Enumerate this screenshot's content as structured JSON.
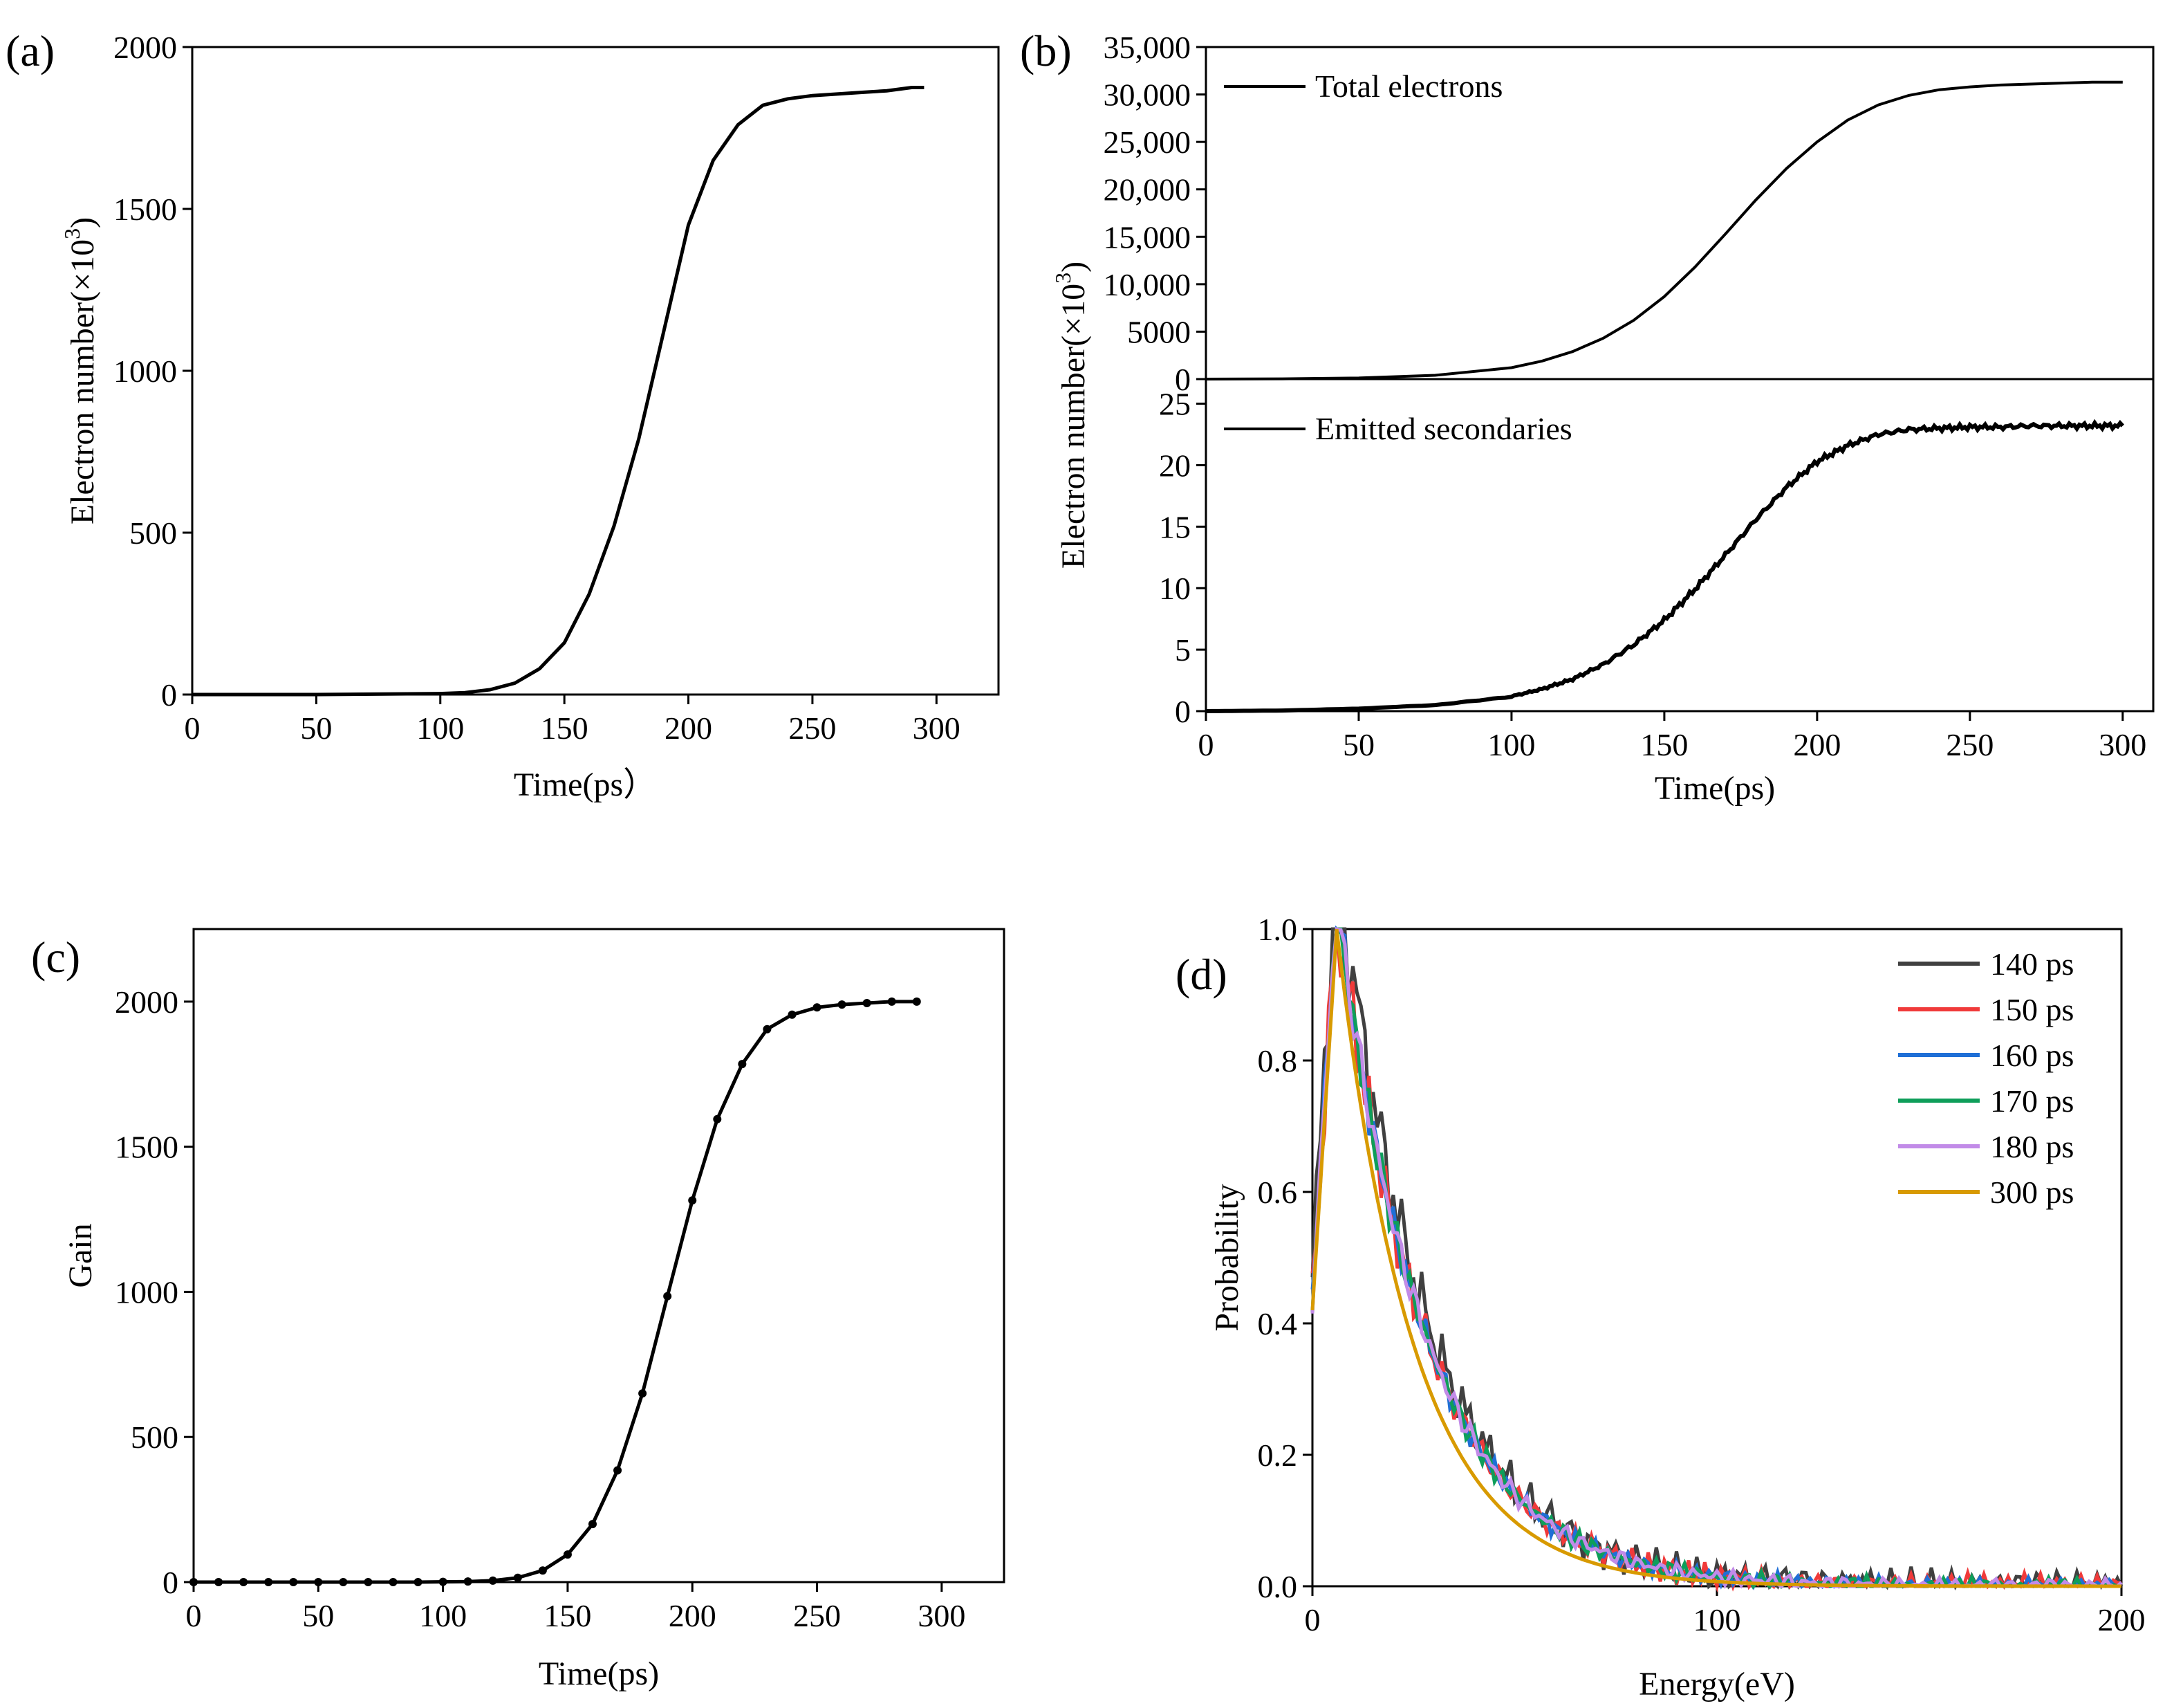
{
  "chart_data": [
    {
      "id": "a",
      "panel_label": "(a)",
      "type": "line",
      "xlabel": "Time(ps）",
      "ylabel": "Electron number(×10",
      "ylabel_sup": "3",
      "ylabel_close": ")",
      "xlim": [
        0,
        325
      ],
      "ylim": [
        0,
        2000
      ],
      "xticks": [
        0,
        50,
        100,
        150,
        200,
        250,
        300
      ],
      "yticks": [
        0,
        500,
        1000,
        1500,
        2000
      ],
      "yticklabels": [
        "0",
        "500",
        "1000",
        "1500",
        "2000"
      ],
      "series": [
        {
          "x": [
            0,
            50,
            100,
            110,
            120,
            130,
            140,
            150,
            160,
            170,
            180,
            190,
            200,
            210,
            220,
            230,
            240,
            250,
            260,
            270,
            280,
            290,
            295
          ],
          "y": [
            0,
            0,
            3,
            6,
            15,
            35,
            80,
            160,
            310,
            520,
            790,
            1120,
            1450,
            1650,
            1760,
            1820,
            1840,
            1850,
            1855,
            1860,
            1865,
            1875,
            1875
          ]
        }
      ]
    },
    {
      "id": "b_top",
      "panel_label": "(b)",
      "type": "line",
      "ylabel": "Electron number(×10",
      "ylabel_sup": "3",
      "ylabel_close": ")",
      "xlim": [
        0,
        310
      ],
      "ylim": [
        0,
        35000
      ],
      "yticks": [
        0,
        5000,
        10000,
        15000,
        20000,
        25000,
        30000,
        35000
      ],
      "yticklabels": [
        "0",
        "5000",
        "10,000",
        "15,000",
        "20,000",
        "25,000",
        "30,000",
        "35,000"
      ],
      "series": [
        {
          "name": "Total electrons",
          "x": [
            0,
            25,
            50,
            75,
            100,
            110,
            120,
            130,
            140,
            150,
            160,
            170,
            180,
            190,
            200,
            210,
            220,
            230,
            240,
            250,
            260,
            270,
            280,
            290,
            300
          ],
          "y": [
            0,
            30,
            120,
            400,
            1200,
            1900,
            2900,
            4300,
            6200,
            8700,
            11800,
            15300,
            18900,
            22200,
            25000,
            27300,
            28900,
            29900,
            30500,
            30800,
            31000,
            31100,
            31200,
            31300,
            31300
          ]
        }
      ]
    },
    {
      "id": "b_bottom",
      "type": "line",
      "xlabel": "Time(ps)",
      "xlim": [
        0,
        310
      ],
      "ylim": [
        0,
        27
      ],
      "xticks": [
        0,
        50,
        100,
        150,
        200,
        250,
        300
      ],
      "yticks": [
        0,
        5,
        10,
        15,
        20,
        25
      ],
      "yticklabels": [
        "0",
        "5",
        "10",
        "15",
        "20",
        "25"
      ],
      "series": [
        {
          "name": "Emitted secondaries",
          "x": [
            0,
            25,
            50,
            75,
            100,
            110,
            120,
            130,
            140,
            150,
            160,
            170,
            180,
            190,
            200,
            210,
            220,
            230,
            240,
            250,
            260,
            270,
            280,
            290,
            300
          ],
          "y": [
            0,
            0.05,
            0.2,
            0.5,
            1.2,
            1.8,
            2.6,
            3.8,
            5.4,
            7.4,
            9.9,
            12.7,
            15.6,
            18.2,
            20.3,
            21.6,
            22.5,
            22.9,
            23.0,
            23.1,
            23.1,
            23.2,
            23.2,
            23.2,
            23.2
          ]
        }
      ]
    },
    {
      "id": "c",
      "panel_label": "(c)",
      "type": "line",
      "xlabel": "Time(ps)",
      "ylabel": "Gain",
      "xlim": [
        0,
        325
      ],
      "ylim": [
        0,
        2250
      ],
      "xticks": [
        0,
        50,
        100,
        150,
        200,
        250,
        300
      ],
      "yticks": [
        0,
        500,
        1000,
        1500,
        2000
      ],
      "yticklabels": [
        "0",
        "500",
        "1000",
        "1500",
        "2000"
      ],
      "series": [
        {
          "x": [
            0,
            10,
            20,
            30,
            40,
            50,
            60,
            70,
            80,
            90,
            100,
            110,
            120,
            130,
            140,
            150,
            160,
            170,
            180,
            190,
            200,
            210,
            220,
            230,
            240,
            250,
            260,
            270,
            280,
            290
          ],
          "y": [
            0,
            0,
            0,
            0,
            0,
            0,
            0,
            0,
            0,
            0,
            1,
            2,
            5,
            15,
            40,
            95,
            200,
            385,
            650,
            985,
            1315,
            1595,
            1785,
            1905,
            1955,
            1980,
            1990,
            1995,
            2000,
            2000
          ]
        }
      ]
    },
    {
      "id": "d",
      "panel_label": "(d)",
      "type": "line",
      "xlabel": "Energy(eV)",
      "ylabel": "Probability",
      "xlim": [
        0,
        200
      ],
      "ylim": [
        0,
        1.0
      ],
      "xticks": [
        0,
        100,
        200
      ],
      "yticks": [
        0,
        0.2,
        0.4,
        0.6,
        0.8,
        1.0
      ],
      "yticklabels": [
        "0.0",
        "0.2",
        "0.4",
        "0.6",
        "0.8",
        "1.0"
      ],
      "series": [
        {
          "name": "140 ps",
          "color": "#404040"
        },
        {
          "name": "150 ps",
          "color": "#f03a3a"
        },
        {
          "name": "160 ps",
          "color": "#1f6fd6"
        },
        {
          "name": "170 ps",
          "color": "#0e9e5a"
        },
        {
          "name": "180 ps",
          "color": "#c28be8"
        },
        {
          "name": "300 ps",
          "color": "#d89a00"
        }
      ]
    }
  ]
}
